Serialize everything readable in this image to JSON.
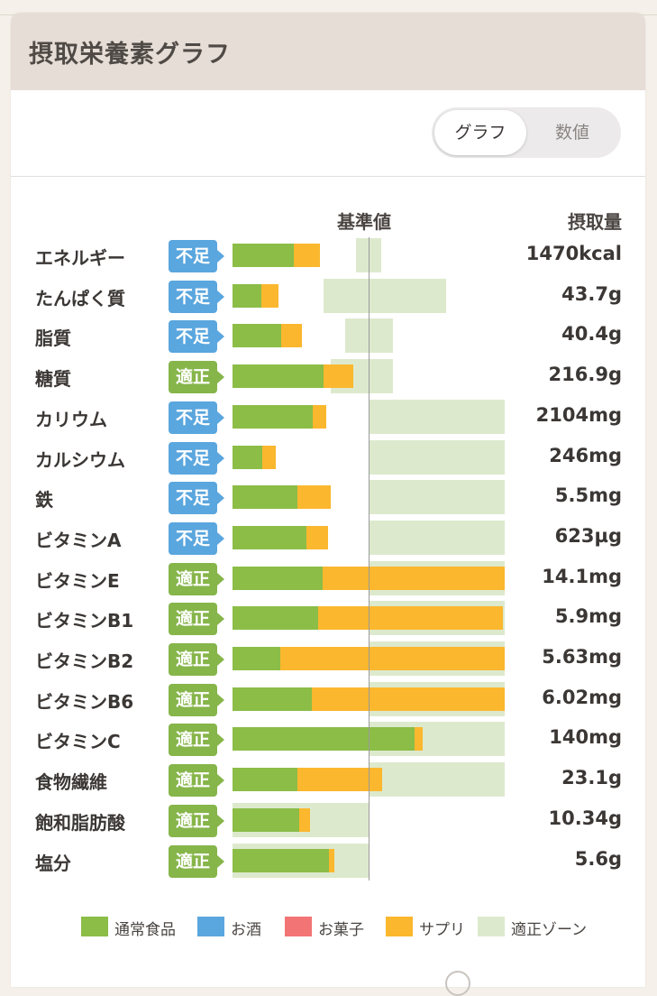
{
  "card": {
    "title": "摂取栄養素グラフ"
  },
  "toggle": {
    "graph_label": "グラフ",
    "number_label": "数値"
  },
  "columns": {
    "reference": "基準値",
    "intake": "摂取量"
  },
  "colors": {
    "food": "#8bbd47",
    "alcohol": "#5aa6de",
    "sweets": "#f27474",
    "supplement": "#fbb72e",
    "zone": "#dde9cd",
    "status_low": "#5aa6de",
    "status_ok": "#86b54a"
  },
  "nutrients": [
    {
      "name": "エネルギー",
      "status": "不足",
      "status_type": "low",
      "amount": "1470kcal",
      "food_pct": 45,
      "supp_pct": 19,
      "zone_pct": [
        91,
        109
      ]
    },
    {
      "name": "たんぱく質",
      "status": "不足",
      "status_type": "low",
      "amount": "43.7g",
      "food_pct": 21,
      "supp_pct": 13,
      "zone_pct": [
        67,
        157
      ]
    },
    {
      "name": "脂質",
      "status": "不足",
      "status_type": "low",
      "amount": "40.4g",
      "food_pct": 36,
      "supp_pct": 15,
      "zone_pct": [
        83,
        118
      ]
    },
    {
      "name": "糖質",
      "status": "適正",
      "status_type": "ok",
      "amount": "216.9g",
      "food_pct": 67,
      "supp_pct": 22,
      "zone_pct": [
        72,
        118
      ]
    },
    {
      "name": "カリウム",
      "status": "不足",
      "status_type": "low",
      "amount": "2104mg",
      "food_pct": 59,
      "supp_pct": 10,
      "zone_pct": [
        100,
        200
      ]
    },
    {
      "name": "カルシウム",
      "status": "不足",
      "status_type": "low",
      "amount": "246mg",
      "food_pct": 22,
      "supp_pct": 10,
      "zone_pct": [
        100,
        200
      ]
    },
    {
      "name": "鉄",
      "status": "不足",
      "status_type": "low",
      "amount": "5.5mg",
      "food_pct": 48,
      "supp_pct": 24,
      "zone_pct": [
        100,
        200
      ]
    },
    {
      "name": "ビタミンA",
      "status": "不足",
      "status_type": "low",
      "amount": "623µg",
      "food_pct": 54,
      "supp_pct": 16,
      "zone_pct": [
        100,
        200
      ]
    },
    {
      "name": "ビタミンE",
      "status": "適正",
      "status_type": "ok",
      "amount": "14.1mg",
      "food_pct": 66,
      "supp_pct": 134,
      "zone_pct": [
        100,
        200
      ]
    },
    {
      "name": "ビタミンB1",
      "status": "適正",
      "status_type": "ok",
      "amount": "5.9mg",
      "food_pct": 63,
      "supp_pct": 136,
      "zone_pct": [
        100,
        200
      ]
    },
    {
      "name": "ビタミンB2",
      "status": "適正",
      "status_type": "ok",
      "amount": "5.63mg",
      "food_pct": 35,
      "supp_pct": 165,
      "zone_pct": [
        100,
        200
      ]
    },
    {
      "name": "ビタミンB6",
      "status": "適正",
      "status_type": "ok",
      "amount": "6.02mg",
      "food_pct": 58,
      "supp_pct": 142,
      "zone_pct": [
        100,
        200
      ]
    },
    {
      "name": "ビタミンC",
      "status": "適正",
      "status_type": "ok",
      "amount": "140mg",
      "food_pct": 134,
      "supp_pct": 6,
      "zone_pct": [
        100,
        200
      ]
    },
    {
      "name": "食物繊維",
      "status": "適正",
      "status_type": "ok",
      "amount": "23.1g",
      "food_pct": 48,
      "supp_pct": 62,
      "zone_pct": [
        100,
        200
      ]
    },
    {
      "name": "飽和脂肪酸",
      "status": "適正",
      "status_type": "ok",
      "amount": "10.34g",
      "food_pct": 49,
      "supp_pct": 8,
      "zone_pct": [
        0,
        100
      ]
    },
    {
      "name": "塩分",
      "status": "適正",
      "status_type": "ok",
      "amount": "5.6g",
      "food_pct": 71,
      "supp_pct": 4,
      "zone_pct": [
        0,
        100
      ]
    }
  ],
  "legend": [
    {
      "label": "通常食品",
      "color": "#8bbd47",
      "icon": "food-swatch"
    },
    {
      "label": "お酒",
      "color": "#5aa6de",
      "icon": "alcohol-swatch"
    },
    {
      "label": "お菓子",
      "color": "#f27474",
      "icon": "sweets-swatch"
    },
    {
      "label": "サプリ",
      "color": "#fbb72e",
      "icon": "supplement-swatch"
    },
    {
      "label": "適正ゾーン",
      "color": "#dde9cd",
      "icon": "zone-swatch"
    }
  ]
}
